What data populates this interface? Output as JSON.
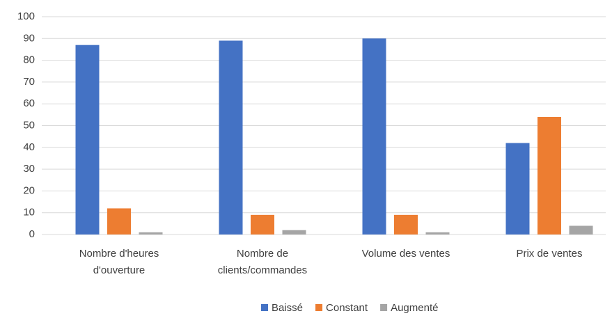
{
  "chart_data": {
    "type": "bar",
    "categories": [
      "Nombre d'heures d'ouverture",
      "Nombre de clients/commandes",
      "Volume des ventes",
      "Prix de ventes"
    ],
    "series": [
      {
        "name": "Baissé",
        "color": "#4472c4",
        "values": [
          87,
          89,
          90,
          42
        ]
      },
      {
        "name": "Constant",
        "color": "#ed7d31",
        "values": [
          12,
          9,
          9,
          54
        ]
      },
      {
        "name": "Augmenté",
        "color": "#a5a5a5",
        "values": [
          1,
          2,
          1,
          4
        ]
      }
    ],
    "ylim": [
      0,
      100
    ],
    "yticks": [
      0,
      10,
      20,
      30,
      40,
      50,
      60,
      70,
      80,
      90,
      100
    ],
    "grid": true,
    "legend": "bottom"
  }
}
